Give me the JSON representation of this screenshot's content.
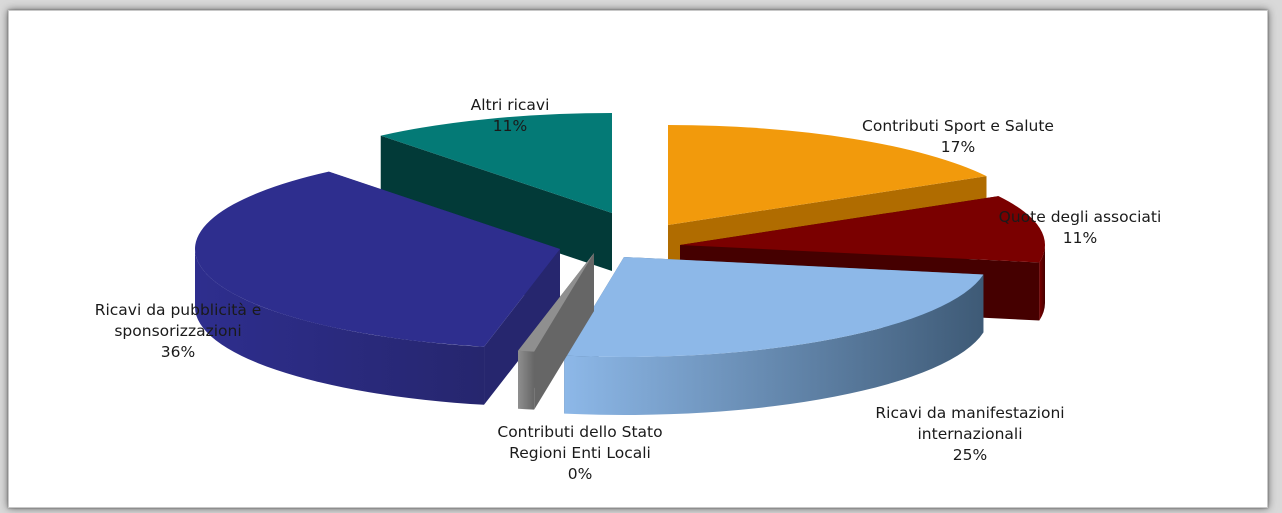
{
  "chart_data": {
    "type": "pie",
    "title": "",
    "categories": [
      "Contributi Sport e Salute",
      "Quote degli associati",
      "Ricavi da manifestazioni internazionali",
      "Contributi dello Stato Regioni Enti Locali",
      "Ricavi da pubblicità e sponsorizzazioni",
      "Altri ricavi"
    ],
    "values": [
      17,
      11,
      25,
      0,
      36,
      11
    ],
    "unit": "%",
    "labels": [
      {
        "lines": [
          "Contributi Sport e Salute"
        ],
        "pct": "17%"
      },
      {
        "lines": [
          "Quote degli associati"
        ],
        "pct": "11%"
      },
      {
        "lines": [
          "Ricavi da manifestazioni",
          "internazionali"
        ],
        "pct": "25%"
      },
      {
        "lines": [
          "Contributi dello Stato",
          "Regioni Enti Locali"
        ],
        "pct": "0%"
      },
      {
        "lines": [
          "Ricavi da pubblicità e",
          "sponsorizzazioni"
        ],
        "pct": "36%"
      },
      {
        "lines": [
          "Altri ricavi"
        ],
        "pct": "11%"
      }
    ],
    "colors": [
      "#f29a0c",
      "#7a0000",
      "#8db8e8",
      "#8f8f8f",
      "#2e2e8e",
      "#047a76"
    ],
    "side_colors": [
      "#b06c00",
      "#450000",
      "#3e5a76",
      "#666666",
      "#26266e",
      "#023a38"
    ],
    "style": "3d-exploded",
    "legend": "none"
  }
}
